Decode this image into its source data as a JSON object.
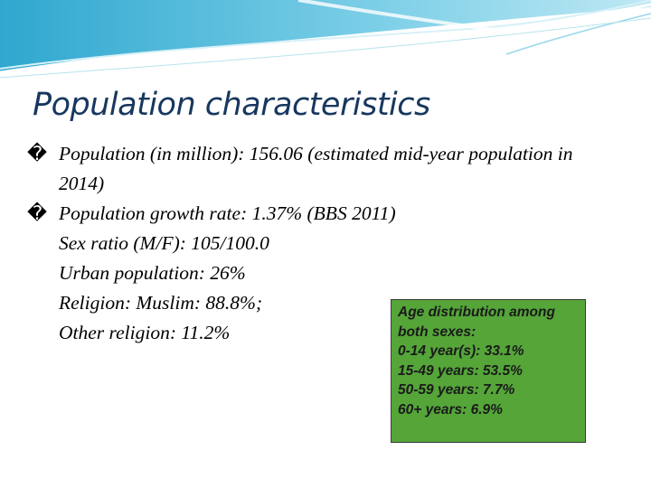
{
  "title": "Population characteristics",
  "body": [
    {
      "marker": "�",
      "text": "Population (in million): 156.06 (estimated mid-year population in 2014)"
    },
    {
      "marker": "�",
      "text": "Population growth rate: 1.37% (BBS 2011)"
    },
    {
      "text": "Sex ratio (M/F): 105/100.0"
    },
    {
      "text": "Urban population: 26%"
    },
    {
      "text": "Religion: Muslim: 88.8%;"
    },
    {
      "text": "Other religion: 11.2%"
    }
  ],
  "box": {
    "lines": [
      "Age distribution among both sexes:",
      "0-14 year(s): 33.1%",
      "15-49 years: 53.5%",
      "50-59 years: 7.7%",
      "60+ years: 6.9%"
    ]
  }
}
